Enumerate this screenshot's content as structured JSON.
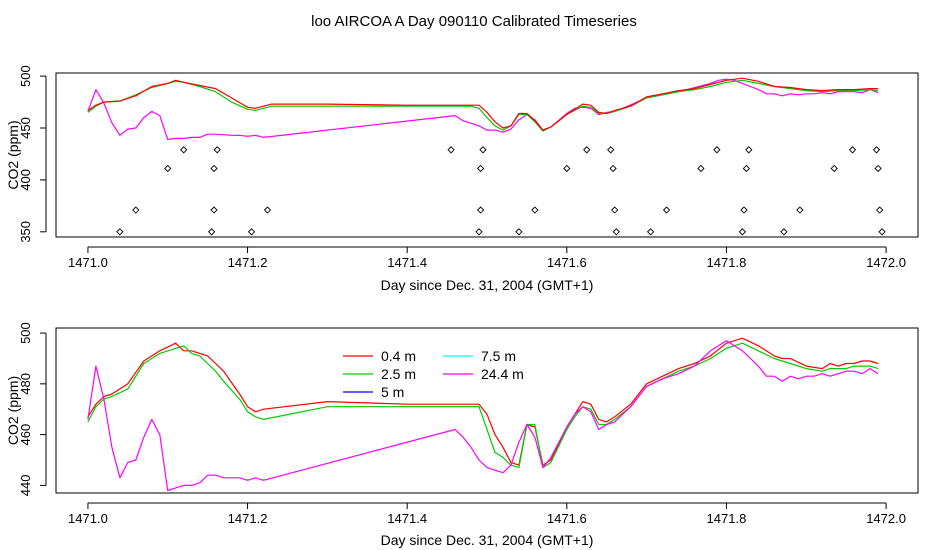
{
  "title": "loo AIRCOA A  Day 090110  Calibrated Timeseries",
  "chart_data": [
    {
      "type": "line",
      "title": "",
      "xlabel": "Day since Dec. 31, 2004 (GMT+1)",
      "ylabel": "CO2 (ppm)",
      "xlim": [
        1470.96,
        1472.04
      ],
      "ylim": [
        345,
        503
      ],
      "xticks": [
        "1471.0",
        "1471.2",
        "1471.4",
        "1471.6",
        "1471.8",
        "1472.0"
      ],
      "yticks": [
        "350",
        "400",
        "450",
        "500"
      ],
      "grid": false,
      "legend": "none",
      "series": [
        {
          "name": "24.4 m",
          "color": "#ff00ff",
          "x": [
            1471.0,
            1471.01,
            1471.02,
            1471.03,
            1471.04,
            1471.05,
            1471.06,
            1471.07,
            1471.08,
            1471.09,
            1471.1,
            1471.11,
            1471.12,
            1471.13,
            1471.14,
            1471.15,
            1471.16,
            1471.18,
            1471.19,
            1471.2,
            1471.21,
            1471.22,
            1471.46,
            1471.47,
            1471.49,
            1471.5,
            1471.51,
            1471.52,
            1471.53,
            1471.54,
            1471.55,
            1471.56,
            1471.57,
            1471.58,
            1471.6,
            1471.61,
            1471.62,
            1471.63,
            1471.64,
            1471.65,
            1471.66,
            1471.67,
            1471.7,
            1471.74,
            1471.78,
            1471.79,
            1471.8,
            1471.81,
            1471.82,
            1471.83,
            1471.84,
            1471.85,
            1471.86,
            1471.87,
            1471.88,
            1471.89,
            1471.9,
            1471.91,
            1471.92,
            1471.93,
            1471.94,
            1471.95,
            1471.96,
            1471.97,
            1471.98,
            1471.99
          ],
          "y": [
            466,
            487,
            474,
            455,
            443,
            449,
            450,
            460,
            466,
            462,
            439,
            440,
            440,
            441,
            441,
            444,
            444,
            443,
            443,
            442,
            443,
            441,
            462,
            457,
            452,
            448,
            448,
            446,
            449,
            458,
            463,
            458,
            448,
            451,
            464,
            469,
            470,
            469,
            463,
            465,
            466,
            469,
            479,
            485,
            493,
            496,
            497,
            496,
            493,
            490,
            487,
            483,
            483,
            481,
            483,
            482,
            483,
            483,
            484,
            483,
            485,
            485,
            485,
            484,
            487,
            484
          ]
        },
        {
          "name": "2.5 m",
          "color": "#00cc00",
          "x": [
            1471.0,
            1471.01,
            1471.02,
            1471.04,
            1471.06,
            1471.08,
            1471.1,
            1471.11,
            1471.12,
            1471.14,
            1471.16,
            1471.18,
            1471.2,
            1471.21,
            1471.23,
            1471.3,
            1471.4,
            1471.48,
            1471.49,
            1471.5,
            1471.51,
            1471.52,
            1471.53,
            1471.54,
            1471.55,
            1471.56,
            1471.57,
            1471.58,
            1471.6,
            1471.62,
            1471.63,
            1471.64,
            1471.65,
            1471.66,
            1471.68,
            1471.7,
            1471.72,
            1471.74,
            1471.76,
            1471.78,
            1471.8,
            1471.82,
            1471.84,
            1471.86,
            1471.88,
            1471.9,
            1471.92,
            1471.94,
            1471.96,
            1471.98,
            1471.99
          ],
          "y": [
            465,
            471,
            475,
            476,
            482,
            489,
            493,
            495,
            494,
            490,
            485,
            475,
            468,
            467,
            471,
            471,
            471,
            471,
            469,
            460,
            452,
            448,
            452,
            463,
            463,
            456,
            447,
            451,
            463,
            471,
            470,
            464,
            464,
            466,
            471,
            479,
            482,
            485,
            487,
            490,
            494,
            496,
            493,
            490,
            488,
            486,
            485,
            486,
            486,
            487,
            486
          ]
        },
        {
          "name": "0.4 m",
          "color": "#ff0000",
          "x": [
            1471.0,
            1471.01,
            1471.02,
            1471.04,
            1471.06,
            1471.08,
            1471.1,
            1471.11,
            1471.12,
            1471.14,
            1471.16,
            1471.18,
            1471.2,
            1471.21,
            1471.23,
            1471.3,
            1471.4,
            1471.48,
            1471.49,
            1471.5,
            1471.51,
            1471.52,
            1471.53,
            1471.54,
            1471.55,
            1471.56,
            1471.57,
            1471.58,
            1471.6,
            1471.62,
            1471.63,
            1471.64,
            1471.65,
            1471.66,
            1471.68,
            1471.7,
            1471.72,
            1471.74,
            1471.76,
            1471.78,
            1471.8,
            1471.82,
            1471.84,
            1471.86,
            1471.88,
            1471.9,
            1471.92,
            1471.94,
            1471.96,
            1471.98,
            1471.99
          ],
          "y": [
            467,
            472,
            475,
            476,
            481,
            490,
            493,
            496,
            494,
            491,
            488,
            479,
            470,
            469,
            473,
            473,
            472,
            472,
            472,
            465,
            456,
            450,
            452,
            464,
            464,
            457,
            448,
            451,
            463,
            473,
            472,
            465,
            464,
            467,
            471,
            480,
            483,
            486,
            488,
            492,
            496,
            498,
            495,
            490,
            489,
            487,
            486,
            487,
            487,
            488,
            488
          ]
        }
      ],
      "annotations": [
        {
          "x": 1471.04,
          "y": 350
        },
        {
          "x": 1471.06,
          "y": 371
        },
        {
          "x": 1471.1,
          "y": 411
        },
        {
          "x": 1471.12,
          "y": 429
        },
        {
          "x": 1471.155,
          "y": 350
        },
        {
          "x": 1471.158,
          "y": 371
        },
        {
          "x": 1471.158,
          "y": 411
        },
        {
          "x": 1471.162,
          "y": 429
        },
        {
          "x": 1471.205,
          "y": 350
        },
        {
          "x": 1471.225,
          "y": 371
        },
        {
          "x": 1471.455,
          "y": 429
        },
        {
          "x": 1471.49,
          "y": 350
        },
        {
          "x": 1471.492,
          "y": 371
        },
        {
          "x": 1471.492,
          "y": 411
        },
        {
          "x": 1471.495,
          "y": 429
        },
        {
          "x": 1471.54,
          "y": 350
        },
        {
          "x": 1471.56,
          "y": 371
        },
        {
          "x": 1471.6,
          "y": 411
        },
        {
          "x": 1471.625,
          "y": 429
        },
        {
          "x": 1471.655,
          "y": 429
        },
        {
          "x": 1471.658,
          "y": 411
        },
        {
          "x": 1471.66,
          "y": 371
        },
        {
          "x": 1471.662,
          "y": 350
        },
        {
          "x": 1471.705,
          "y": 350
        },
        {
          "x": 1471.725,
          "y": 371
        },
        {
          "x": 1471.768,
          "y": 411
        },
        {
          "x": 1471.788,
          "y": 429
        },
        {
          "x": 1471.82,
          "y": 350
        },
        {
          "x": 1471.822,
          "y": 371
        },
        {
          "x": 1471.825,
          "y": 411
        },
        {
          "x": 1471.828,
          "y": 429
        },
        {
          "x": 1471.872,
          "y": 350
        },
        {
          "x": 1471.892,
          "y": 371
        },
        {
          "x": 1471.935,
          "y": 411
        },
        {
          "x": 1471.958,
          "y": 429
        },
        {
          "x": 1471.988,
          "y": 429
        },
        {
          "x": 1471.99,
          "y": 411
        },
        {
          "x": 1471.992,
          "y": 371
        },
        {
          "x": 1471.995,
          "y": 350
        }
      ]
    },
    {
      "type": "line",
      "title": "",
      "xlabel": "Day since Dec. 31, 2004 (GMT+1)",
      "ylabel": "CO2 (ppm)",
      "xlim": [
        1470.96,
        1472.04
      ],
      "ylim": [
        437,
        502
      ],
      "xticks": [
        "1471.0",
        "1471.2",
        "1471.4",
        "1471.6",
        "1471.8",
        "1472.0"
      ],
      "yticks": [
        "440",
        "460",
        "480",
        "500"
      ],
      "grid": false,
      "legend": "top-left",
      "series": [
        {
          "name": "0.4 m",
          "color": "#ff0000",
          "x": [
            1471.0,
            1471.01,
            1471.02,
            1471.03,
            1471.05,
            1471.07,
            1471.09,
            1471.11,
            1471.12,
            1471.13,
            1471.14,
            1471.15,
            1471.16,
            1471.17,
            1471.19,
            1471.2,
            1471.21,
            1471.22,
            1471.3,
            1471.4,
            1471.47,
            1471.49,
            1471.5,
            1471.51,
            1471.52,
            1471.53,
            1471.54,
            1471.55,
            1471.56,
            1471.57,
            1471.58,
            1471.6,
            1471.61,
            1471.62,
            1471.63,
            1471.64,
            1471.65,
            1471.66,
            1471.68,
            1471.7,
            1471.72,
            1471.74,
            1471.76,
            1471.78,
            1471.8,
            1471.82,
            1471.84,
            1471.86,
            1471.87,
            1471.88,
            1471.9,
            1471.92,
            1471.93,
            1471.94,
            1471.95,
            1471.96,
            1471.97,
            1471.98,
            1471.99
          ],
          "y": [
            467,
            472,
            475,
            476,
            480,
            489,
            493,
            496,
            493,
            493,
            492,
            491,
            488,
            485,
            476,
            471,
            469,
            470,
            473,
            472,
            472,
            472,
            468,
            460,
            455,
            449,
            448,
            464,
            463,
            448,
            450,
            463,
            468,
            473,
            472,
            466,
            465,
            467,
            472,
            480,
            483,
            486,
            488,
            491,
            496,
            498,
            495,
            491,
            490,
            490,
            487,
            486,
            488,
            487,
            488,
            488,
            489,
            489,
            488
          ]
        },
        {
          "name": "2.5 m",
          "color": "#00cc00",
          "x": [
            1471.0,
            1471.01,
            1471.02,
            1471.03,
            1471.05,
            1471.07,
            1471.09,
            1471.11,
            1471.12,
            1471.13,
            1471.14,
            1471.15,
            1471.16,
            1471.17,
            1471.19,
            1471.2,
            1471.21,
            1471.22,
            1471.3,
            1471.4,
            1471.47,
            1471.49,
            1471.5,
            1471.51,
            1471.52,
            1471.53,
            1471.54,
            1471.55,
            1471.56,
            1471.57,
            1471.58,
            1471.6,
            1471.61,
            1471.62,
            1471.63,
            1471.64,
            1471.65,
            1471.66,
            1471.68,
            1471.7,
            1471.72,
            1471.74,
            1471.76,
            1471.78,
            1471.8,
            1471.82,
            1471.84,
            1471.86,
            1471.87,
            1471.88,
            1471.9,
            1471.92,
            1471.93,
            1471.94,
            1471.95,
            1471.96,
            1471.97,
            1471.98,
            1471.99
          ],
          "y": [
            465,
            471,
            474,
            475,
            478,
            488,
            492,
            494,
            495,
            492,
            491,
            488,
            485,
            481,
            474,
            469,
            467,
            466,
            471,
            471,
            471,
            471,
            462,
            453,
            451,
            448,
            447,
            464,
            464,
            447,
            449,
            462,
            467,
            471,
            470,
            464,
            464,
            466,
            471,
            479,
            482,
            485,
            487,
            490,
            494,
            496,
            493,
            490,
            489,
            488,
            486,
            485,
            486,
            486,
            486,
            487,
            487,
            487,
            486
          ]
        },
        {
          "name": "24.4 m",
          "color": "#ff00ff",
          "x": [
            1471.0,
            1471.01,
            1471.02,
            1471.03,
            1471.04,
            1471.05,
            1471.06,
            1471.07,
            1471.08,
            1471.09,
            1471.1,
            1471.11,
            1471.12,
            1471.13,
            1471.14,
            1471.15,
            1471.16,
            1471.17,
            1471.18,
            1471.19,
            1471.2,
            1471.21,
            1471.22,
            1471.46,
            1471.47,
            1471.48,
            1471.49,
            1471.5,
            1471.51,
            1471.52,
            1471.53,
            1471.54,
            1471.55,
            1471.56,
            1471.57,
            1471.58,
            1471.6,
            1471.61,
            1471.62,
            1471.63,
            1471.64,
            1471.65,
            1471.66,
            1471.68,
            1471.7,
            1471.72,
            1471.74,
            1471.76,
            1471.78,
            1471.8,
            1471.81,
            1471.82,
            1471.83,
            1471.84,
            1471.85,
            1471.86,
            1471.87,
            1471.88,
            1471.89,
            1471.9,
            1471.91,
            1471.92,
            1471.93,
            1471.94,
            1471.95,
            1471.96,
            1471.97,
            1471.98,
            1471.99
          ],
          "y": [
            466,
            487,
            474,
            455,
            443,
            449,
            450,
            459,
            466,
            460,
            438,
            439,
            440,
            440,
            441,
            444,
            444,
            443,
            443,
            443,
            442,
            443,
            442,
            462,
            459,
            455,
            450,
            447,
            446,
            445,
            448,
            457,
            464,
            459,
            447,
            451,
            463,
            468,
            471,
            469,
            462,
            464,
            465,
            471,
            479,
            482,
            484,
            487,
            493,
            497,
            495,
            493,
            490,
            487,
            483,
            483,
            481,
            483,
            482,
            483,
            483,
            484,
            483,
            484,
            485,
            485,
            484,
            486,
            484
          ]
        }
      ],
      "legend_entries": [
        {
          "name": "0.4 m",
          "color": "#ff0000"
        },
        {
          "name": "2.5 m",
          "color": "#00cc00"
        },
        {
          "name": "5 m",
          "color": "#0000ff"
        },
        {
          "name": "7.5 m",
          "color": "#00ffff"
        },
        {
          "name": "24.4 m",
          "color": "#ff00ff"
        }
      ]
    }
  ]
}
